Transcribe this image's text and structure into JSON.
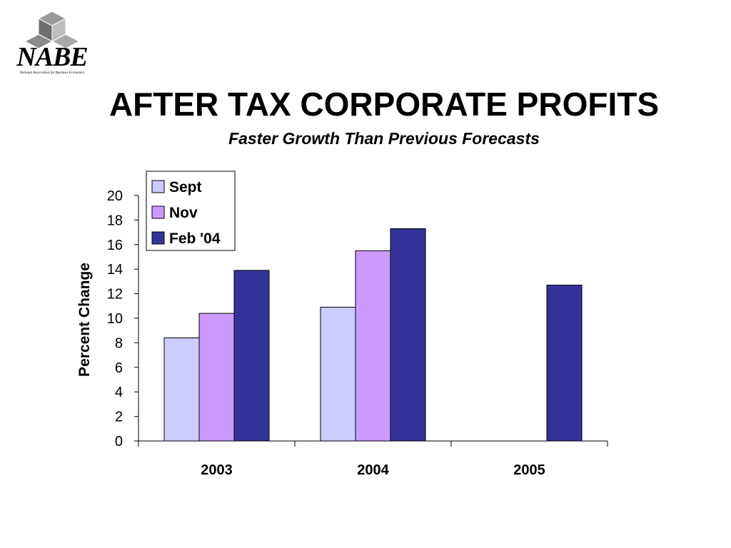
{
  "logo": {
    "text": "NABE",
    "subtext": "National Association for Business Economics"
  },
  "header": {
    "title": "AFTER TAX CORPORATE PROFITS",
    "subtitle": "Faster Growth Than Previous Forecasts"
  },
  "colors": {
    "Sept": "#ccccff",
    "Nov": "#cc99ff",
    "Feb '04": "#333399"
  },
  "chart_data": {
    "type": "bar",
    "categories": [
      "2003",
      "2004",
      "2005"
    ],
    "series": [
      {
        "name": "Sept",
        "values": [
          8.4,
          10.9,
          null
        ]
      },
      {
        "name": "Nov",
        "values": [
          10.4,
          15.5,
          null
        ]
      },
      {
        "name": "Feb '04",
        "values": [
          13.9,
          17.3,
          12.7
        ]
      }
    ],
    "ylabel": "Percent Change",
    "ylim": [
      0,
      20
    ],
    "yticks": [
      0,
      2,
      4,
      6,
      8,
      10,
      12,
      14,
      16,
      18,
      20
    ],
    "grid": false,
    "legend": "top-left"
  }
}
